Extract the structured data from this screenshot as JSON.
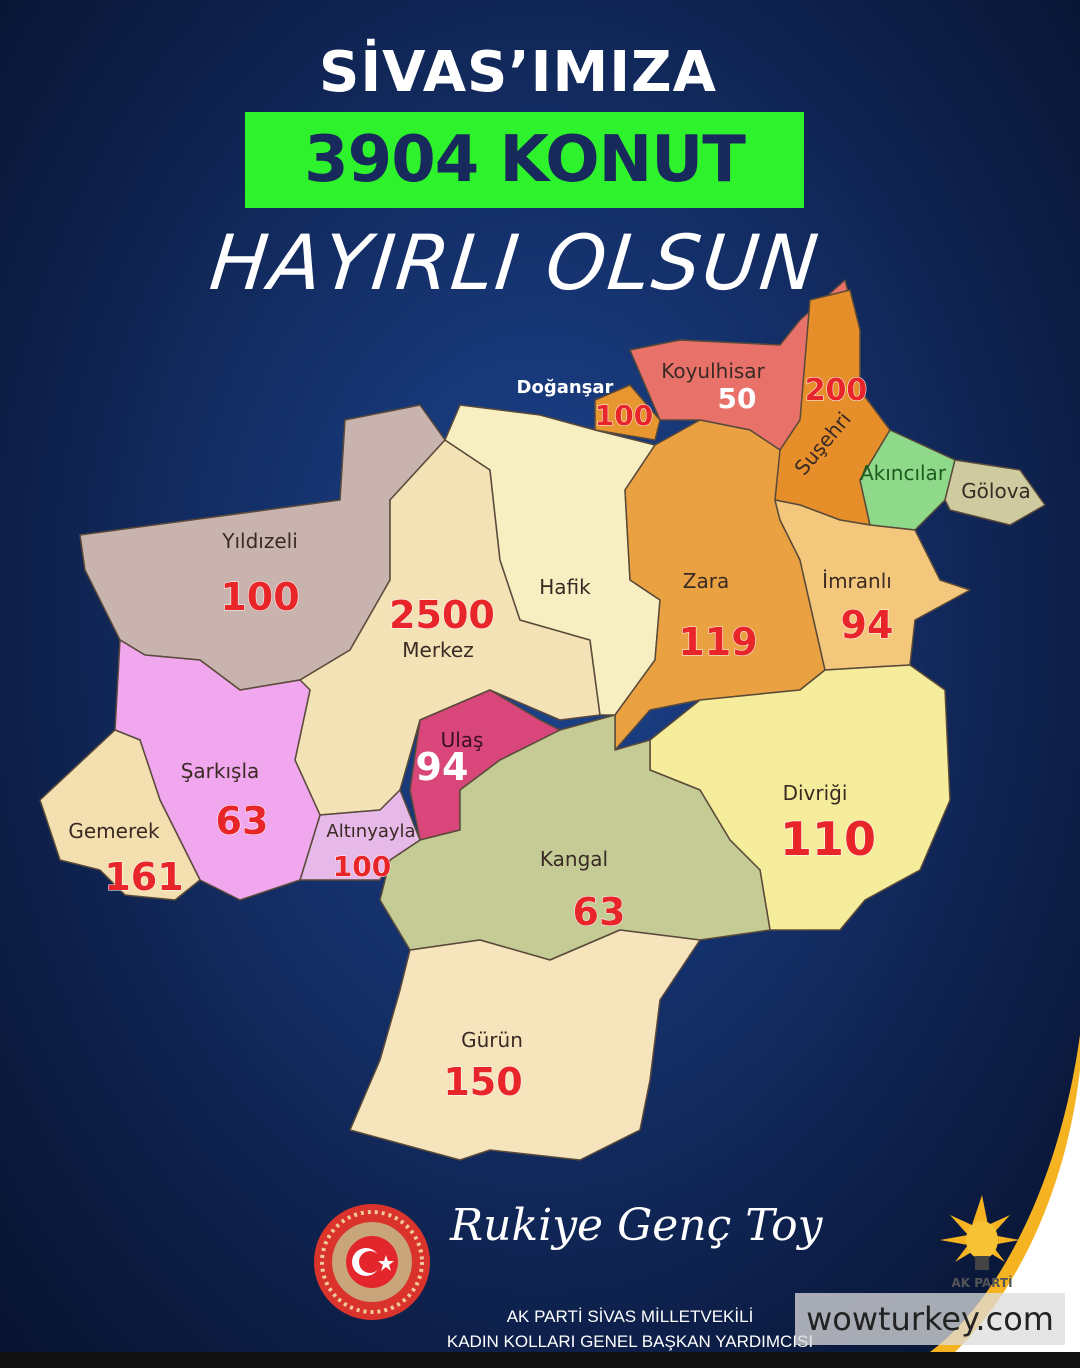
{
  "header": {
    "title": "SİVAS’IMIZA",
    "highlight": "3904 KONUT",
    "subtitle": "HAYIRLI OLSUN"
  },
  "colors": {
    "highlight_bg": "#2ef32c",
    "highlight_text": "#182a5c",
    "number": "#e8262a",
    "background": "#142f68"
  },
  "districts": [
    {
      "name": "Yıldızeli",
      "value": "100",
      "color": "#c9b3ae"
    },
    {
      "name": "Merkez",
      "value": "2500",
      "color": "#f2e2b6"
    },
    {
      "name": "Hafik",
      "value": "",
      "color": "#f7efc2"
    },
    {
      "name": "Koyulhisar",
      "value": "50",
      "color": "#e8716a"
    },
    {
      "name": "Doğanşar",
      "value": "100",
      "color": "#e8962f"
    },
    {
      "name": "Suşehri",
      "value": "200",
      "color": "#e68e2a"
    },
    {
      "name": "Akıncılar",
      "value": "",
      "color": "#8ed98a"
    },
    {
      "name": "Gölova",
      "value": "",
      "color": "#cfcba1"
    },
    {
      "name": "Zara",
      "value": "119",
      "color": "#e9a142"
    },
    {
      "name": "İmranlı",
      "value": "94",
      "color": "#f4c87c"
    },
    {
      "name": "Divriği",
      "value": "110",
      "color": "#f5ec9c"
    },
    {
      "name": "Ulaş",
      "value": "94",
      "color": "#d9467a"
    },
    {
      "name": "Kangal",
      "value": "63",
      "color": "#c4cb95"
    },
    {
      "name": "Altınyayla",
      "value": "100",
      "color": "#e6b9e8"
    },
    {
      "name": "Şarkışla",
      "value": "63",
      "color": "#f0a7ee"
    },
    {
      "name": "Gemerek",
      "value": "161",
      "color": "#f3dfb0"
    },
    {
      "name": "Gürün",
      "value": "150",
      "color": "#f5e4bc"
    }
  ],
  "footer": {
    "signature": "Rukiye Genç Toy",
    "line1": "AK PARTİ SİVAS MİLLETVEKİLİ",
    "line2": "KADIN KOLLARI GENEL BAŞKAN YARDIMCISI",
    "seal_text": "TÜRKİYE BÜYÜK MİLLET MECLİSİ",
    "party_logo_text": "AK PARTİ",
    "watermark": "wowturkey.com"
  }
}
